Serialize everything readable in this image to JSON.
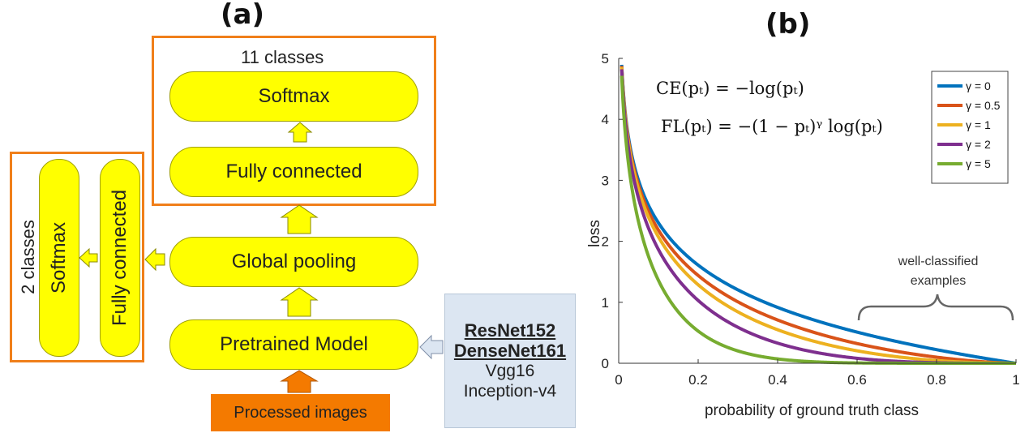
{
  "panel_a": {
    "label": "(a)",
    "eleven_classes": "11 classes",
    "softmax_top": "Softmax",
    "fully_connected_top": "Fully connected",
    "global_pooling": "Global pooling",
    "pretrained_model": "Pretrained Model",
    "processed_images": "Processed images",
    "two_classes": "2 classes",
    "softmax_side": "Softmax",
    "fully_connected_side": "Fully connected",
    "models": {
      "bold": [
        "ResNet152",
        "DenseNet161"
      ],
      "regular": [
        "Vgg16",
        "Inception-v4"
      ]
    },
    "colors": {
      "pill": "#ffff00",
      "box": "#f07f1a",
      "processed": "#f47a00",
      "models_bg": "#dce6f2"
    }
  },
  "panel_b": {
    "label": "(b)",
    "formula_ce": "CE(pₜ) = −log(pₜ)",
    "formula_fl": "FL(pₜ) = −(1 − pₜ)ᵞ log(pₜ)",
    "annotation": [
      "well-classified",
      "examples"
    ]
  },
  "chart_data": {
    "type": "line",
    "title": "",
    "xlabel": "probability of ground truth class",
    "ylabel": "loss",
    "xlim": [
      0,
      1
    ],
    "ylim": [
      0,
      5
    ],
    "xticks": [
      "0",
      "0.2",
      "0.4",
      "0.6",
      "0.8",
      "1"
    ],
    "yticks": [
      "0",
      "1",
      "2",
      "3",
      "4",
      "5"
    ],
    "legend_position": "top-right",
    "series": [
      {
        "name": "γ = 0",
        "gamma": 0,
        "color": "#0072bd"
      },
      {
        "name": "γ = 0.5",
        "gamma": 0.5,
        "color": "#d95319"
      },
      {
        "name": "γ = 1",
        "gamma": 1,
        "color": "#edb120"
      },
      {
        "name": "γ = 2",
        "gamma": 2,
        "color": "#7e2f8e"
      },
      {
        "name": "γ = 5",
        "gamma": 5,
        "color": "#77ac30"
      }
    ]
  }
}
